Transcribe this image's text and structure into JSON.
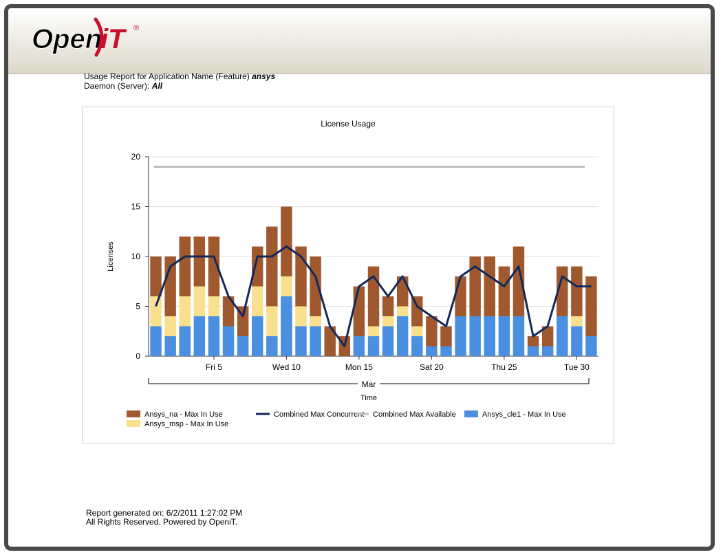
{
  "logo": {
    "text_open": "Open",
    "text_it": "iT",
    "registered": "®"
  },
  "report": {
    "line1_prefix": "Usage Report for Application Name (Feature) ",
    "line1_value": "ansys",
    "line2_prefix": "Daemon (Server): ",
    "line2_value": "All"
  },
  "footer": {
    "generated": "Report generated on: 6/2/2011 1:27:02 PM",
    "rights": "All Rights Reserved. Powered by OpeniT."
  },
  "colors": {
    "ansys_na": "#a0592f",
    "ansys_msp": "#f9e08f",
    "ansys_cle1": "#4a8fe0",
    "combined_max_concurrent": "#13285a",
    "combined_max_available": "#bdbdbd"
  },
  "chart_data": {
    "type": "bar",
    "title": "License Usage",
    "xlabel": "Time",
    "ylabel": "Licenses",
    "xgroup_label": "Mar",
    "ylim": [
      0,
      20
    ],
    "yticks": [
      0,
      5,
      10,
      15,
      20
    ],
    "x": [
      1,
      2,
      3,
      4,
      5,
      6,
      7,
      8,
      9,
      10,
      11,
      12,
      13,
      14,
      15,
      16,
      17,
      18,
      19,
      20,
      21,
      22,
      23,
      24,
      25,
      26,
      27,
      28,
      29,
      30,
      31
    ],
    "xticks": [
      {
        "day": 5,
        "label": "Fri 5"
      },
      {
        "day": 10,
        "label": "Wed 10"
      },
      {
        "day": 15,
        "label": "Mon 15"
      },
      {
        "day": 20,
        "label": "Sat 20"
      },
      {
        "day": 25,
        "label": "Thu 25"
      },
      {
        "day": 30,
        "label": "Tue 30"
      }
    ],
    "series": [
      {
        "name": "Ansys_cle1 - Max In Use",
        "kind": "bar",
        "color": "#4a8fe0",
        "values": [
          3,
          2,
          3,
          4,
          4,
          3,
          2,
          4,
          2,
          6,
          3,
          3,
          0,
          0,
          2,
          2,
          3,
          4,
          2,
          1,
          1,
          4,
          4,
          4,
          4,
          4,
          1,
          1,
          4,
          3,
          2
        ]
      },
      {
        "name": "Ansys_msp - Max In Use",
        "kind": "bar",
        "color": "#f9e08f",
        "values": [
          3,
          2,
          3,
          3,
          2,
          0,
          0,
          3,
          3,
          2,
          2,
          1,
          0,
          0,
          0,
          1,
          1,
          1,
          1,
          0,
          0,
          0,
          0,
          0,
          0,
          0,
          0,
          0,
          0,
          1,
          0
        ]
      },
      {
        "name": "Ansys_na - Max In Use",
        "kind": "bar",
        "color": "#a0592f",
        "values": [
          4,
          6,
          6,
          5,
          6,
          3,
          3,
          4,
          8,
          7,
          6,
          6,
          3,
          2,
          5,
          6,
          2,
          3,
          3,
          3,
          2,
          4,
          6,
          6,
          5,
          7,
          1,
          2,
          5,
          5,
          6
        ]
      },
      {
        "name": "Combined Max Concurrent",
        "kind": "line",
        "color": "#13285a",
        "values": [
          5,
          9,
          10,
          10,
          10,
          6,
          4,
          10,
          10,
          11,
          10,
          8,
          3,
          1,
          7,
          8,
          6,
          8,
          5,
          4,
          3,
          8,
          9,
          8,
          7,
          9,
          2,
          3,
          8,
          7,
          7
        ]
      },
      {
        "name": "Combined Max Available",
        "kind": "line",
        "color": "#bdbdbd",
        "values": [
          19,
          19,
          19,
          19,
          19,
          19,
          19,
          19,
          19,
          19,
          19,
          19,
          19,
          19,
          19,
          19,
          19,
          19,
          19,
          19,
          19,
          19,
          19,
          19,
          19,
          19,
          19,
          19,
          19,
          19,
          19
        ]
      }
    ],
    "legend": [
      {
        "label": "Ansys_na - Max In Use",
        "type": "swatch",
        "color": "#a0592f"
      },
      {
        "label": "Combined Max Concurrent",
        "type": "line",
        "color": "#13285a"
      },
      {
        "label": "Combined Max Available",
        "type": "line",
        "color": "#bdbdbd"
      },
      {
        "label": "Ansys_cle1 - Max In Use",
        "type": "swatch",
        "color": "#4a8fe0"
      },
      {
        "label": "Ansys_msp - Max In Use",
        "type": "swatch",
        "color": "#f9e08f"
      }
    ],
    "legend_position": "bottom",
    "grid": true
  }
}
